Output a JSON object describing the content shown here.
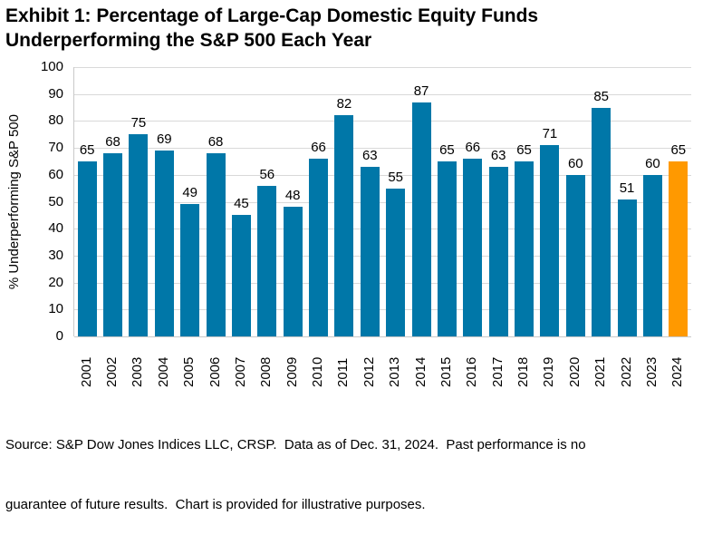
{
  "title": {
    "line1": "Exhibit 1: Percentage of Large-Cap Domestic Equity Funds",
    "line2": "Underperforming the S&P 500 Each Year"
  },
  "footer": {
    "line1": "Source: S&P Dow Jones Indices LLC, CRSP.  Data as of Dec. 31, 2024.  Past performance is no",
    "line2": "guarantee of future results.  Chart is provided for illustrative purposes."
  },
  "chart_data": {
    "type": "bar",
    "title": "Exhibit 1: Percentage of Large-Cap Domestic Equity Funds Underperforming the S&P 500 Each Year",
    "categories": [
      "2001",
      "2002",
      "2003",
      "2004",
      "2005",
      "2006",
      "2007",
      "2008",
      "2009",
      "2010",
      "2011",
      "2012",
      "2013",
      "2014",
      "2015",
      "2016",
      "2017",
      "2018",
      "2019",
      "2020",
      "2021",
      "2022",
      "2023",
      "2024"
    ],
    "values": [
      65,
      68,
      75,
      69,
      49,
      68,
      45,
      56,
      48,
      66,
      82,
      63,
      55,
      87,
      65,
      66,
      63,
      65,
      71,
      60,
      85,
      51,
      60,
      65
    ],
    "xlabel": "",
    "ylabel": "% Underperforming S&P 500",
    "ylim": [
      0,
      100
    ],
    "yticks": [
      0,
      10,
      20,
      30,
      40,
      50,
      60,
      70,
      80,
      90,
      100
    ],
    "grid": true,
    "legend": "none",
    "data_labels": true,
    "bar_color": "#0077A8",
    "highlight_color": "#FF9900",
    "highlight_category": "2024",
    "gridline_color": "#D9D9D9",
    "axis_line_color": "#C9C9C9"
  }
}
